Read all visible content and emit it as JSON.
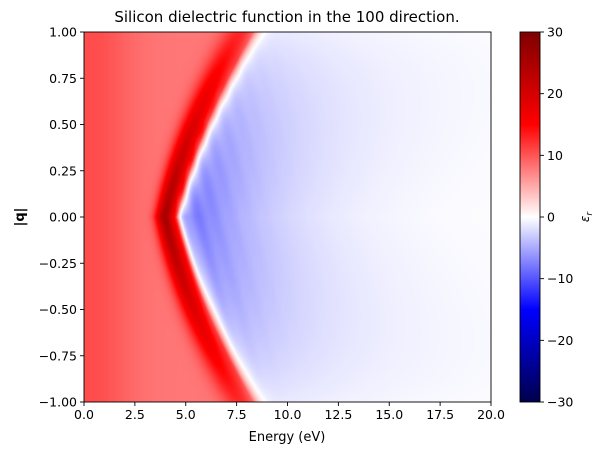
{
  "chart_data": {
    "type": "heatmap",
    "title": "Silicon dielectric function in the 100 direction.",
    "xlabel": "Energy (eV)",
    "ylabel": "|q|",
    "xlim": [
      0.0,
      20.0
    ],
    "ylim": [
      -1.0,
      1.0
    ],
    "x_ticks": [
      "0.0",
      "2.5",
      "5.0",
      "7.5",
      "10.0",
      "12.5",
      "15.0",
      "17.5",
      "20.0"
    ],
    "y_ticks": [
      "1.00",
      "0.75",
      "0.50",
      "0.25",
      "0.00",
      "−0.25",
      "−0.50",
      "−0.75",
      "−1.00"
    ],
    "colorbar": {
      "label": "ε_r",
      "colormap": "seismic",
      "range": [
        -30,
        30
      ],
      "ticks": [
        "30",
        "20",
        "10",
        "0",
        "−10",
        "−20",
        "−30"
      ]
    },
    "field_description": {
      "peak_positive_energy_at_q0": 3.8,
      "peak_positive_value": 28,
      "zero_crossing_energy_at_q0": 4.5,
      "min_negative_value": -11,
      "background_value_low_energy": 8
    }
  },
  "colors": {
    "deep_red": "#7f0000",
    "red": "#ff0000",
    "white": "#ffffff",
    "blue": "#0000ff",
    "deep_blue": "#00004c"
  }
}
